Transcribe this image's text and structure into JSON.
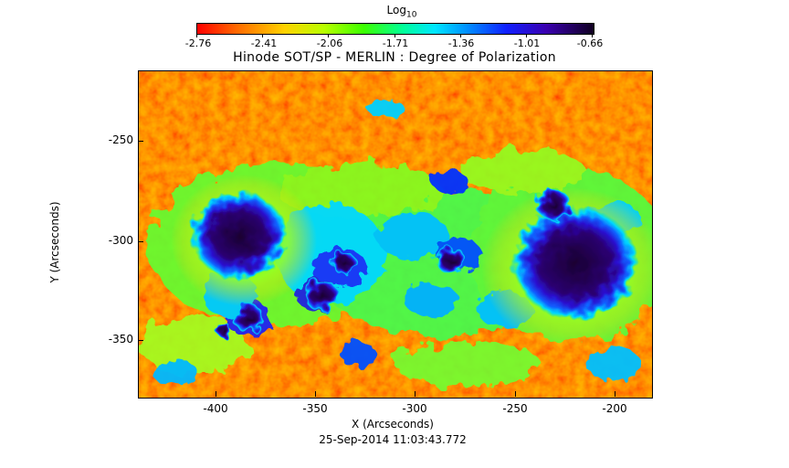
{
  "colorbar": {
    "label": "Log",
    "label_sub": "10",
    "ticks": [
      "-2.76",
      "-2.41",
      "-2.06",
      "-1.71",
      "-1.36",
      "-1.01",
      "-0.66"
    ]
  },
  "title": "Hinode SOT/SP - MERLIN : Degree of Polarization",
  "axes": {
    "xlabel": "X (Arcseconds)",
    "ylabel": "Y (Arcseconds)",
    "xticks": [
      "-400",
      "-350",
      "-300",
      "-250",
      "-200"
    ],
    "yticks": [
      "-250",
      "-300",
      "-350"
    ]
  },
  "timestamp": "25-Sep-2014 11:03:43.772"
}
